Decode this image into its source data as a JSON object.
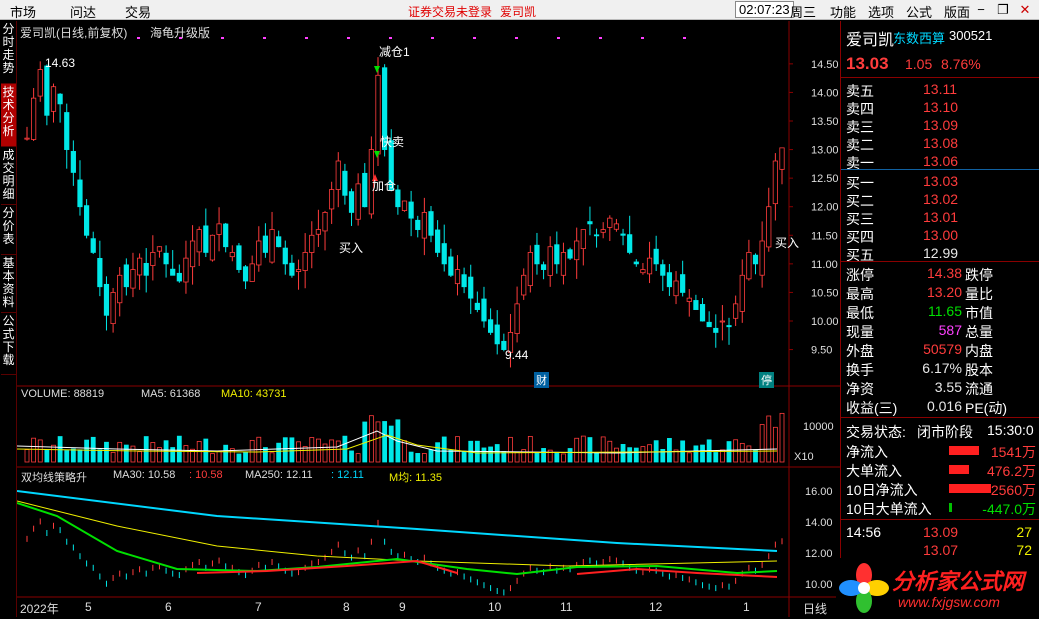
{
  "menubar": {
    "left_items": [
      "市场",
      "问达",
      "交易"
    ],
    "notice": "证券交易未登录",
    "stock": "爱司凯",
    "clock": "02:07:23",
    "weekday": "周三",
    "right_items": [
      "功能",
      "选项",
      "公式",
      "版面"
    ],
    "win_buttons": [
      "−",
      "❐",
      "✕"
    ]
  },
  "left_tabs": [
    "分时走势",
    "技术分析",
    "成交明细",
    "分价表",
    "基本资料",
    "公式下载"
  ],
  "main_chart": {
    "title": "爱司凯(日线,前复权)",
    "indicator": "海龟升级版",
    "annotations": [
      "减仓1",
      "快卖",
      "加仓",
      "买入",
      "买入"
    ],
    "high_label": "14.63",
    "low_label": "9.44",
    "markers": [
      "财",
      "停"
    ]
  },
  "volume_panel": {
    "label": "VOLUME: 88819",
    "ma5": "MA5: 61368",
    "ma10": "MA10: 43731",
    "axis": [
      "10000",
      "X10"
    ]
  },
  "ma_panel": {
    "label": "双均线策略升",
    "ma30": "MA30: 10.58",
    "ma30b": ": 10.58",
    "ma250": "MA250: 12.11",
    "ma250b": ": 12.11",
    "mjun": "M均: 11.35",
    "axis": [
      "16.00",
      "14.00",
      "12.00",
      "10.00"
    ]
  },
  "date_axis": [
    "2022年",
    "5",
    "6",
    "7",
    "8",
    "9",
    "10",
    "11",
    "12",
    "1"
  ],
  "timeframe": "日线",
  "chart_data": {
    "type": "candlestick",
    "y_axis": [
      14.5,
      14.0,
      13.5,
      13.0,
      12.5,
      12.0,
      11.5,
      11.0,
      10.5,
      10.0,
      9.5
    ],
    "ylim": [
      9.3,
      14.9
    ],
    "closes": [
      13.2,
      13.9,
      14.4,
      13.6,
      14.1,
      13.8,
      13.0,
      12.6,
      12.0,
      11.5,
      11.2,
      10.6,
      10.1,
      10.5,
      10.8,
      10.6,
      10.9,
      11.1,
      10.8,
      11.2,
      11.3,
      11.0,
      10.8,
      10.7,
      11.1,
      11.4,
      11.6,
      11.2,
      11.5,
      11.7,
      11.3,
      11.2,
      10.9,
      10.7,
      11.0,
      11.4,
      11.2,
      11.6,
      11.3,
      11.0,
      10.8,
      10.9,
      11.2,
      11.5,
      11.6,
      11.9,
      12.3,
      12.8,
      12.2,
      11.9,
      12.4,
      12.0,
      13.0,
      14.3,
      13.0,
      12.3,
      12.0,
      12.1,
      11.8,
      11.6,
      11.9,
      11.5,
      11.2,
      11.0,
      10.8,
      10.9,
      10.6,
      10.4,
      10.2,
      10.0,
      9.8,
      9.6,
      9.5,
      9.8,
      10.3,
      10.8,
      11.2,
      11.0,
      10.9,
      11.3,
      11.0,
      11.2,
      11.1,
      11.4,
      11.6,
      11.7,
      11.5,
      11.6,
      11.8,
      11.7,
      11.5,
      11.2,
      11.0,
      10.9,
      11.1,
      11.0,
      10.8,
      10.6,
      10.7,
      10.5,
      10.4,
      10.2,
      10.0,
      9.9,
      9.8,
      10.0,
      9.9,
      10.3,
      10.8,
      11.2,
      11.0,
      11.4,
      12.0,
      12.8,
      13.03
    ],
    "current_price": "13.03",
    "high": "14.63",
    "low": "9.44"
  },
  "quote_panel": {
    "name": "爱司凯",
    "region": "东数西算",
    "code": "300521",
    "price": "13.03",
    "change": "1.05",
    "pct": "8.76%",
    "asks": [
      [
        "卖五",
        "13.11"
      ],
      [
        "卖四",
        "13.10"
      ],
      [
        "卖三",
        "13.09"
      ],
      [
        "卖二",
        "13.08"
      ],
      [
        "卖一",
        "13.06"
      ]
    ],
    "bids": [
      [
        "买一",
        "13.03"
      ],
      [
        "买二",
        "13.02"
      ],
      [
        "买三",
        "13.01"
      ],
      [
        "买四",
        "13.00"
      ],
      [
        "买五",
        "12.99"
      ]
    ],
    "stats": [
      [
        "涨停",
        "14.38",
        "跌停",
        ""
      ],
      [
        "最高",
        "13.20",
        "量比",
        ""
      ],
      [
        "最低",
        "11.65",
        "市值",
        ""
      ],
      [
        "现量",
        "587",
        "总量",
        ""
      ],
      [
        "外盘",
        "50579",
        "内盘",
        ""
      ],
      [
        "换手",
        "6.17%",
        "股本",
        ""
      ],
      [
        "净资",
        "3.55",
        "流通",
        ""
      ],
      [
        "收益(三)",
        "0.016",
        "PE(动)",
        ""
      ]
    ],
    "status_label": "交易状态:",
    "status_value": "闭市阶段",
    "status_time": "15:30:0",
    "flows": [
      [
        "净流入",
        "1541万"
      ],
      [
        "大单流入",
        "476.2万"
      ],
      [
        "10日净流入",
        "2560万"
      ],
      [
        "10日大单流入",
        "-447.0万"
      ]
    ],
    "ticks": [
      [
        "14:56",
        "13.09",
        "27"
      ],
      [
        "",
        "13.07",
        "72"
      ]
    ]
  },
  "logo": {
    "title": "分析家公式网",
    "url": "www.fxjgsw.com"
  }
}
